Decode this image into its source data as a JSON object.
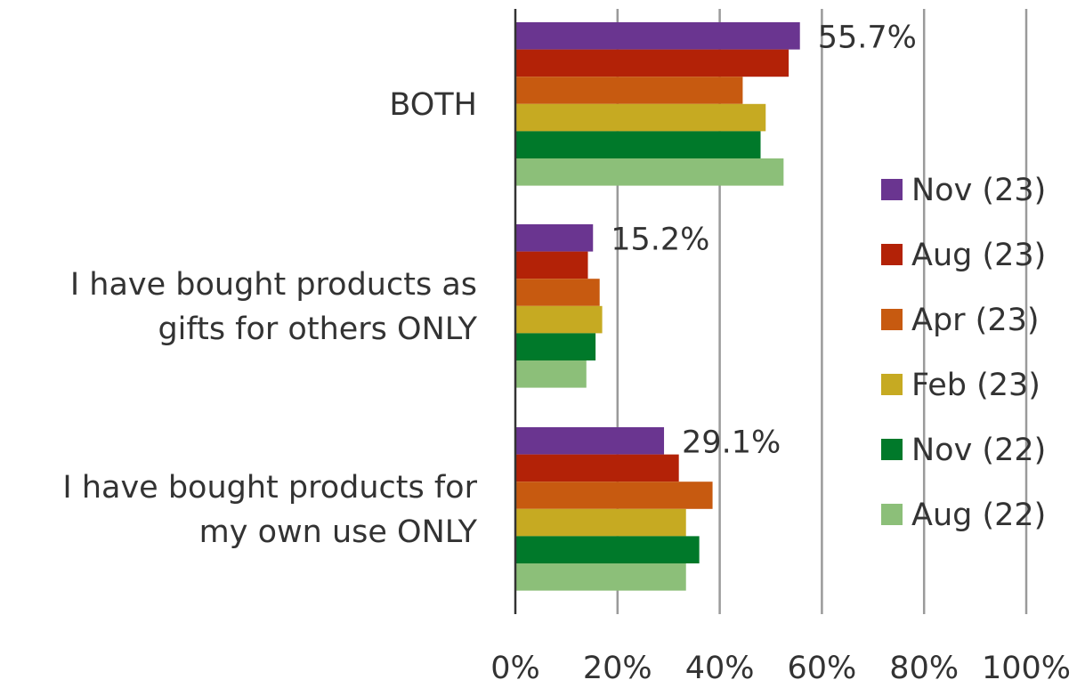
{
  "chart_data": {
    "type": "bar",
    "orientation": "horizontal",
    "categories": [
      "BOTH",
      "I have bought products as gifts for others ONLY",
      "I have bought products for my own use ONLY"
    ],
    "category_lines": [
      [
        "BOTH"
      ],
      [
        "I have bought products as",
        "gifts for others ONLY"
      ],
      [
        "I have bought products for",
        "my own use ONLY"
      ]
    ],
    "series": [
      {
        "name": "Nov (23)",
        "color": "#6a3590",
        "values": [
          55.7,
          15.2,
          29.1
        ]
      },
      {
        "name": "Aug (23)",
        "color": "#b32207",
        "values": [
          53.5,
          14.2,
          32.0
        ]
      },
      {
        "name": "Apr (23)",
        "color": "#c75a10",
        "values": [
          44.5,
          16.5,
          38.6
        ]
      },
      {
        "name": "Feb (23)",
        "color": "#c6aa22",
        "values": [
          49.0,
          17.0,
          33.4
        ]
      },
      {
        "name": "Nov (22)",
        "color": "#00792a",
        "values": [
          48.0,
          15.7,
          36.0
        ]
      },
      {
        "name": "Aug (22)",
        "color": "#8cbf79",
        "values": [
          52.5,
          13.9,
          33.4
        ]
      }
    ],
    "data_labels": [
      "55.7%",
      "15.2%",
      "29.1%"
    ],
    "x_ticks": [
      "0%",
      "20%",
      "40%",
      "60%",
      "80%",
      "100%"
    ],
    "xlim": [
      0,
      100
    ],
    "grid": true,
    "legend_position": "right",
    "title": "",
    "xlabel": "",
    "ylabel": ""
  }
}
